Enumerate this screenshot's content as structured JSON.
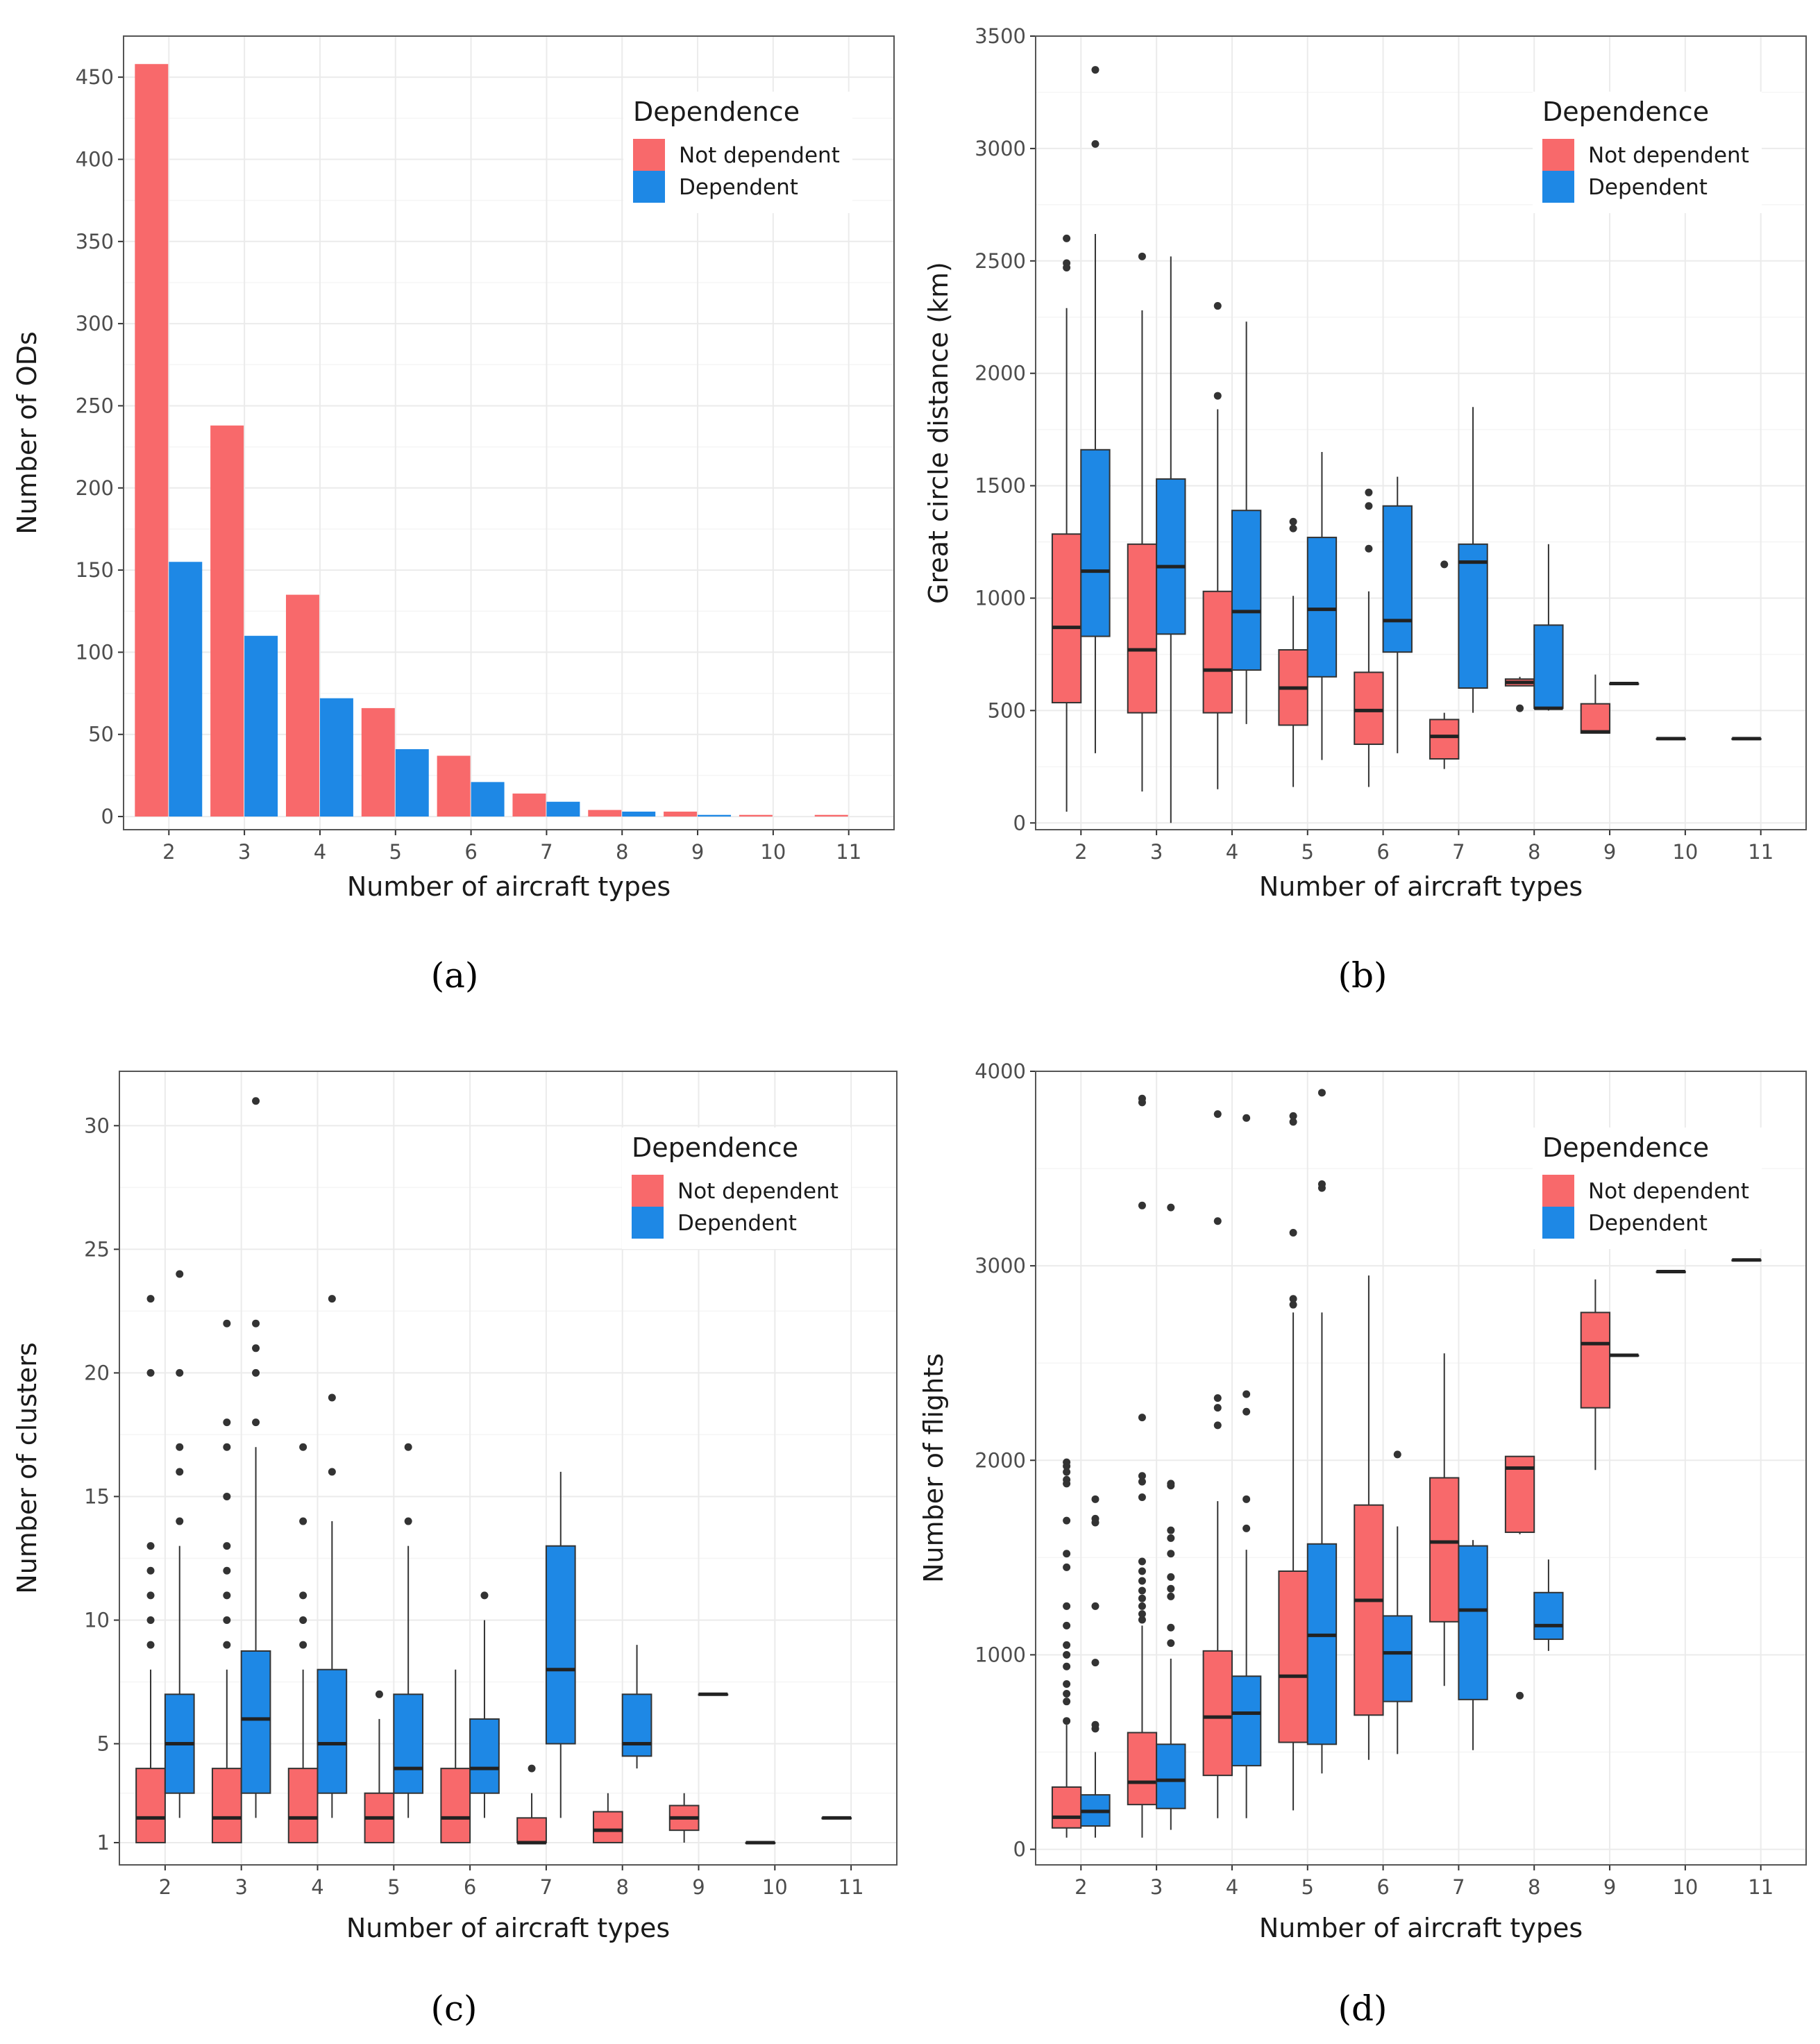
{
  "legend": {
    "title": "Dependence",
    "entries": [
      "Not dependent",
      "Dependent"
    ]
  },
  "colors": {
    "not_dependent": "#F8696B",
    "dependent": "#1E88E5",
    "box_line": "#333333",
    "grid_major": "#EBEBEB",
    "grid_minor": "#F5F5F5",
    "panel_border": "#555555",
    "outlier": "#333333"
  },
  "chart_data": [
    {
      "id": "a",
      "caption": "(a)",
      "type": "bar",
      "xlabel": "Number of aircraft types",
      "ylabel": "Number of ODs",
      "categories": [
        "2",
        "3",
        "4",
        "5",
        "6",
        "7",
        "8",
        "9",
        "10",
        "11"
      ],
      "ylim": [
        -8,
        475
      ],
      "yticks": [
        0,
        50,
        100,
        150,
        200,
        250,
        300,
        350,
        400,
        450
      ],
      "series": [
        {
          "name": "Not dependent",
          "values": [
            458,
            238,
            135,
            66,
            37,
            14,
            4,
            3,
            1,
            1
          ]
        },
        {
          "name": "Dependent",
          "values": [
            155,
            110,
            72,
            41,
            21,
            9,
            3,
            1,
            0,
            0
          ]
        }
      ]
    },
    {
      "id": "b",
      "caption": "(b)",
      "type": "box",
      "xlabel": "Number of aircraft types",
      "ylabel": "Great circle distance (km)",
      "categories": [
        "2",
        "3",
        "4",
        "5",
        "6",
        "7",
        "8",
        "9",
        "10",
        "11"
      ],
      "ylim": [
        -30,
        3500
      ],
      "yticks": [
        0,
        500,
        1000,
        1500,
        2000,
        2500,
        3000,
        3500
      ],
      "series": [
        {
          "name": "Not dependent",
          "boxes": [
            {
              "cat": "2",
              "low": 50,
              "q1": 535,
              "median": 870,
              "q3": 1285,
              "high": 2290,
              "outliers": [
                2470,
                2490,
                2600
              ]
            },
            {
              "cat": "3",
              "low": 140,
              "q1": 490,
              "median": 770,
              "q3": 1240,
              "high": 2280,
              "outliers": [
                2520
              ]
            },
            {
              "cat": "4",
              "low": 150,
              "q1": 490,
              "median": 680,
              "q3": 1030,
              "high": 1840,
              "outliers": [
                1900,
                2300
              ]
            },
            {
              "cat": "5",
              "low": 160,
              "q1": 435,
              "median": 600,
              "q3": 770,
              "high": 1010,
              "outliers": [
                1310,
                1340
              ]
            },
            {
              "cat": "6",
              "low": 160,
              "q1": 350,
              "median": 500,
              "q3": 670,
              "high": 1030,
              "outliers": [
                1220,
                1410,
                1470
              ]
            },
            {
              "cat": "7",
              "low": 240,
              "q1": 285,
              "median": 385,
              "q3": 460,
              "high": 490,
              "outliers": [
                1150
              ]
            },
            {
              "cat": "8",
              "low": 610,
              "q1": 610,
              "median": 625,
              "q3": 640,
              "high": 650,
              "outliers": [
                510
              ]
            },
            {
              "cat": "9",
              "low": 400,
              "q1": 400,
              "median": 405,
              "q3": 530,
              "high": 660,
              "outliers": []
            },
            {
              "cat": "10",
              "low": 375,
              "q1": 375,
              "median": 375,
              "q3": 375,
              "high": 375,
              "outliers": []
            },
            {
              "cat": "11",
              "low": 375,
              "q1": 375,
              "median": 375,
              "q3": 375,
              "high": 375,
              "outliers": []
            }
          ]
        },
        {
          "name": "Dependent",
          "boxes": [
            {
              "cat": "2",
              "low": 310,
              "q1": 830,
              "median": 1120,
              "q3": 1660,
              "high": 2620,
              "outliers": [
                3020,
                3350
              ]
            },
            {
              "cat": "3",
              "low": 0,
              "q1": 840,
              "median": 1140,
              "q3": 1530,
              "high": 2520,
              "outliers": []
            },
            {
              "cat": "4",
              "low": 440,
              "q1": 680,
              "median": 940,
              "q3": 1390,
              "high": 2230,
              "outliers": []
            },
            {
              "cat": "5",
              "low": 280,
              "q1": 650,
              "median": 950,
              "q3": 1270,
              "high": 1650,
              "outliers": []
            },
            {
              "cat": "6",
              "low": 310,
              "q1": 760,
              "median": 900,
              "q3": 1410,
              "high": 1540,
              "outliers": []
            },
            {
              "cat": "7",
              "low": 490,
              "q1": 600,
              "median": 1160,
              "q3": 1240,
              "high": 1850,
              "outliers": []
            },
            {
              "cat": "8",
              "low": 500,
              "q1": 510,
              "median": 510,
              "q3": 880,
              "high": 1240,
              "outliers": []
            },
            {
              "cat": "9",
              "low": 620,
              "q1": 620,
              "median": 620,
              "q3": 620,
              "high": 620,
              "outliers": []
            }
          ]
        }
      ]
    },
    {
      "id": "c",
      "caption": "(c)",
      "type": "box",
      "xlabel": "Number of aircraft types",
      "ylabel": "Number of clusters",
      "categories": [
        "2",
        "3",
        "4",
        "5",
        "6",
        "7",
        "8",
        "9",
        "10",
        "11"
      ],
      "ylim": [
        0.1,
        32.2
      ],
      "yticks": [
        1,
        5,
        10,
        15,
        20,
        25,
        30
      ],
      "series": [
        {
          "name": "Not dependent",
          "boxes": [
            {
              "cat": "2",
              "low": 1,
              "q1": 1,
              "median": 2,
              "q3": 4,
              "high": 8,
              "outliers": [
                9,
                10,
                11,
                12,
                13,
                20,
                23
              ]
            },
            {
              "cat": "3",
              "low": 1,
              "q1": 1,
              "median": 2,
              "q3": 4,
              "high": 8,
              "outliers": [
                9,
                10,
                11,
                12,
                13,
                15,
                17,
                18,
                22
              ]
            },
            {
              "cat": "4",
              "low": 1,
              "q1": 1,
              "median": 2,
              "q3": 4,
              "high": 8,
              "outliers": [
                9,
                10,
                11,
                14,
                17
              ]
            },
            {
              "cat": "5",
              "low": 1,
              "q1": 1,
              "median": 2,
              "q3": 3,
              "high": 6,
              "outliers": [
                7
              ]
            },
            {
              "cat": "6",
              "low": 1,
              "q1": 1,
              "median": 2,
              "q3": 4,
              "high": 8,
              "outliers": []
            },
            {
              "cat": "7",
              "low": 1,
              "q1": 1,
              "median": 1,
              "q3": 2,
              "high": 3,
              "outliers": [
                4
              ]
            },
            {
              "cat": "8",
              "low": 1,
              "q1": 1,
              "median": 1.5,
              "q3": 2.25,
              "high": 3,
              "outliers": []
            },
            {
              "cat": "9",
              "low": 1,
              "q1": 1.5,
              "median": 2,
              "q3": 2.5,
              "high": 3,
              "outliers": []
            },
            {
              "cat": "10",
              "low": 1,
              "q1": 1,
              "median": 1,
              "q3": 1,
              "high": 1,
              "outliers": []
            },
            {
              "cat": "11",
              "low": 2,
              "q1": 2,
              "median": 2,
              "q3": 2,
              "high": 2,
              "outliers": []
            }
          ]
        },
        {
          "name": "Dependent",
          "boxes": [
            {
              "cat": "2",
              "low": 2,
              "q1": 3,
              "median": 5,
              "q3": 7,
              "high": 13,
              "outliers": [
                14,
                16,
                17,
                20,
                24
              ]
            },
            {
              "cat": "3",
              "low": 2,
              "q1": 3,
              "median": 6,
              "q3": 8.75,
              "high": 17,
              "outliers": [
                18,
                20,
                21,
                22,
                31
              ]
            },
            {
              "cat": "4",
              "low": 2,
              "q1": 3,
              "median": 5,
              "q3": 8,
              "high": 14,
              "outliers": [
                16,
                19,
                23
              ]
            },
            {
              "cat": "5",
              "low": 2,
              "q1": 3,
              "median": 4,
              "q3": 7,
              "high": 13,
              "outliers": [
                14,
                17
              ]
            },
            {
              "cat": "6",
              "low": 2,
              "q1": 3,
              "median": 4,
              "q3": 6,
              "high": 10,
              "outliers": [
                11
              ]
            },
            {
              "cat": "7",
              "low": 2,
              "q1": 5,
              "median": 8,
              "q3": 13,
              "high": 16,
              "outliers": []
            },
            {
              "cat": "8",
              "low": 4,
              "q1": 4.5,
              "median": 5,
              "q3": 7,
              "high": 9,
              "outliers": []
            },
            {
              "cat": "9",
              "low": 7,
              "q1": 7,
              "median": 7,
              "q3": 7,
              "high": 7,
              "outliers": []
            }
          ]
        }
      ]
    },
    {
      "id": "d",
      "caption": "(d)",
      "type": "box",
      "xlabel": "Number of aircraft types",
      "ylabel": "Number of flights",
      "categories": [
        "2",
        "3",
        "4",
        "5",
        "6",
        "7",
        "8",
        "9",
        "10",
        "11"
      ],
      "ylim": [
        -80,
        4000
      ],
      "yticks": [
        0,
        1000,
        2000,
        3000,
        4000
      ],
      "series": [
        {
          "name": "Not dependent",
          "boxes": [
            {
              "cat": "2",
              "low": 60,
              "q1": 110,
              "median": 165,
              "q3": 320,
              "high": 640,
              "outliers": [
                660,
                760,
                800,
                850,
                940,
                1000,
                1050,
                1150,
                1250,
                1450,
                1520,
                1690,
                1880,
                1900,
                1940,
                1970,
                1990
              ]
            },
            {
              "cat": "3",
              "low": 60,
              "q1": 230,
              "median": 345,
              "q3": 600,
              "high": 1150,
              "outliers": [
                1180,
                1210,
                1250,
                1290,
                1330,
                1380,
                1430,
                1480,
                1810,
                1890,
                1920,
                2220,
                3310,
                3840,
                3860
              ]
            },
            {
              "cat": "4",
              "low": 160,
              "q1": 380,
              "median": 680,
              "q3": 1020,
              "high": 1790,
              "outliers": [
                2180,
                2270,
                2320,
                3230,
                3780
              ]
            },
            {
              "cat": "5",
              "low": 200,
              "q1": 550,
              "median": 890,
              "q3": 1430,
              "high": 2760,
              "outliers": [
                2800,
                2830,
                3170,
                3740,
                3770
              ]
            },
            {
              "cat": "6",
              "low": 460,
              "q1": 690,
              "median": 1280,
              "q3": 1770,
              "high": 2950,
              "outliers": []
            },
            {
              "cat": "7",
              "low": 840,
              "q1": 1170,
              "median": 1580,
              "q3": 1910,
              "high": 2550,
              "outliers": []
            },
            {
              "cat": "8",
              "low": 1620,
              "q1": 1630,
              "median": 1960,
              "q3": 2020,
              "high": 2020,
              "outliers": [
                790
              ]
            },
            {
              "cat": "9",
              "low": 1950,
              "q1": 2270,
              "median": 2600,
              "q3": 2760,
              "high": 2930,
              "outliers": []
            },
            {
              "cat": "10",
              "low": 2970,
              "q1": 2970,
              "median": 2970,
              "q3": 2970,
              "high": 2970,
              "outliers": []
            },
            {
              "cat": "11",
              "low": 3030,
              "q1": 3030,
              "median": 3030,
              "q3": 3030,
              "high": 3030,
              "outliers": []
            }
          ]
        },
        {
          "name": "Dependent",
          "boxes": [
            {
              "cat": "2",
              "low": 60,
              "q1": 120,
              "median": 195,
              "q3": 280,
              "high": 500,
              "outliers": [
                620,
                640,
                960,
                1250,
                1680,
                1700,
                1800
              ]
            },
            {
              "cat": "3",
              "low": 100,
              "q1": 210,
              "median": 355,
              "q3": 540,
              "high": 980,
              "outliers": [
                1060,
                1140,
                1300,
                1340,
                1400,
                1520,
                1600,
                1640,
                1870,
                1880,
                3300
              ]
            },
            {
              "cat": "4",
              "low": 160,
              "q1": 430,
              "median": 700,
              "q3": 890,
              "high": 1540,
              "outliers": [
                1650,
                1800,
                2250,
                2340,
                3760
              ]
            },
            {
              "cat": "5",
              "low": 390,
              "q1": 540,
              "median": 1100,
              "q3": 1570,
              "high": 2760,
              "outliers": [
                3400,
                3420,
                3890
              ]
            },
            {
              "cat": "6",
              "low": 490,
              "q1": 760,
              "median": 1010,
              "q3": 1200,
              "high": 1660,
              "outliers": [
                2030
              ]
            },
            {
              "cat": "7",
              "low": 510,
              "q1": 770,
              "median": 1230,
              "q3": 1560,
              "high": 1590,
              "outliers": []
            },
            {
              "cat": "8",
              "low": 1020,
              "q1": 1080,
              "median": 1150,
              "q3": 1320,
              "high": 1490,
              "outliers": []
            },
            {
              "cat": "9",
              "low": 2540,
              "q1": 2540,
              "median": 2540,
              "q3": 2540,
              "high": 2540,
              "outliers": []
            }
          ]
        }
      ]
    }
  ]
}
